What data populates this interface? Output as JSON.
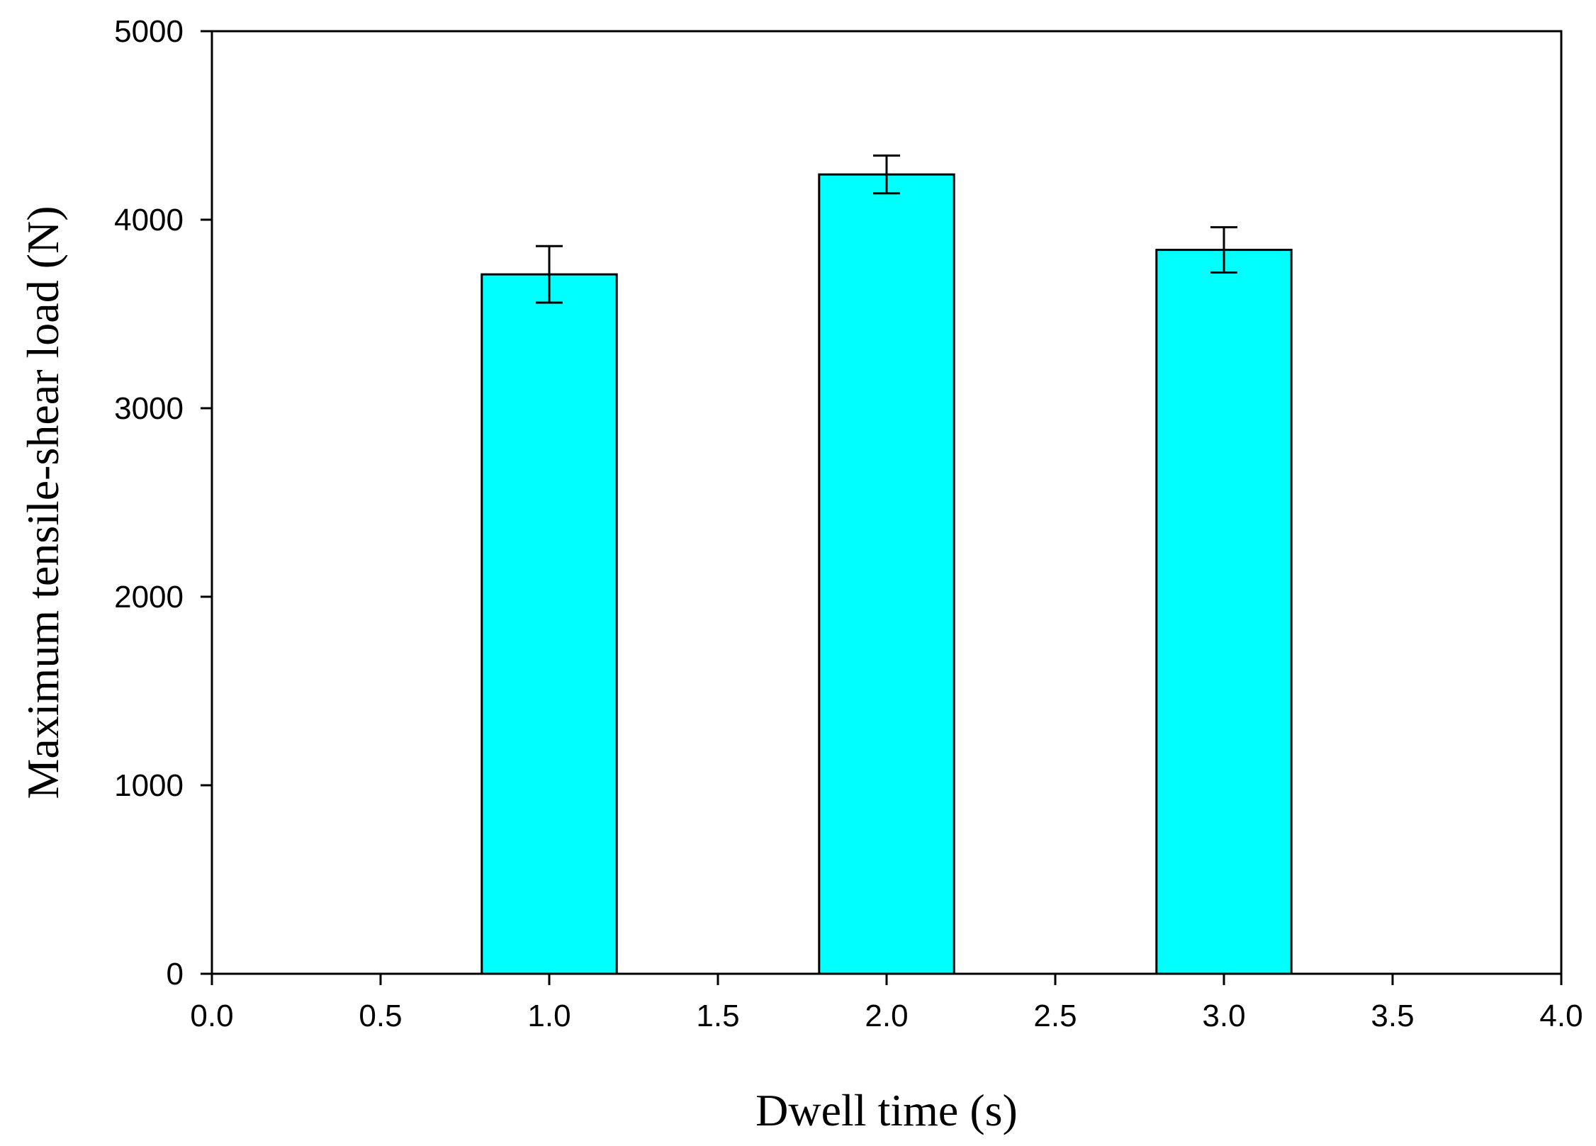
{
  "chart_data": {
    "type": "bar",
    "title": "",
    "xlabel": "Dwell time (s)",
    "ylabel": "Maximum tensile-shear load (N)",
    "xlim": [
      0.0,
      4.0
    ],
    "ylim": [
      0,
      5000
    ],
    "x_ticks": [
      "0.0",
      "0.5",
      "1.0",
      "1.5",
      "2.0",
      "2.5",
      "3.0",
      "3.5",
      "4.0"
    ],
    "y_ticks": [
      "0",
      "1000",
      "2000",
      "3000",
      "4000",
      "5000"
    ],
    "bar_width": 0.4,
    "bar_color": "#00FFFF",
    "series": [
      {
        "x": [
          1.0,
          2.0,
          3.0
        ],
        "values": [
          3710,
          4240,
          3840
        ],
        "error": [
          150,
          100,
          120
        ]
      }
    ],
    "grid": false,
    "legend": "none"
  }
}
